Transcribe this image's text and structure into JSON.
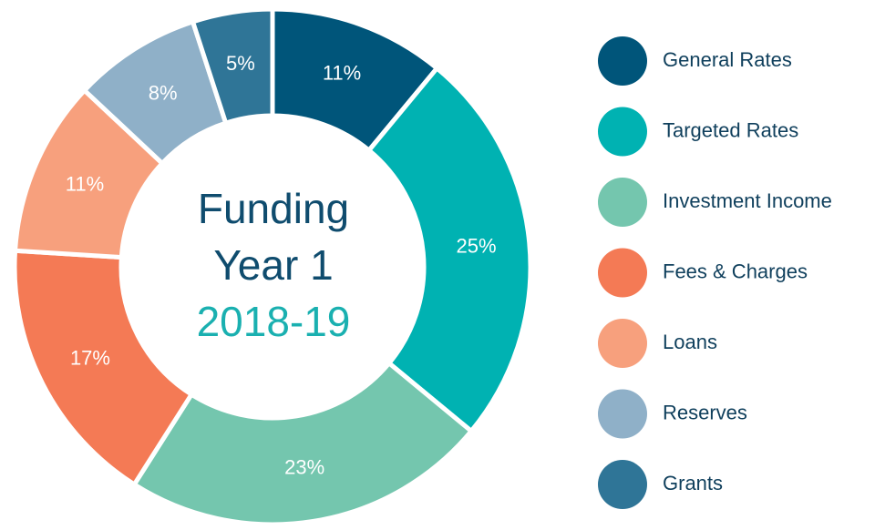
{
  "chart_data": {
    "type": "donut",
    "title_lines": [
      "Funding",
      "Year 1"
    ],
    "subtitle": "2018-19",
    "categories": [
      "General Rates",
      "Targeted Rates",
      "Investment Income",
      "Fees & Charges",
      "Loans",
      "Reserves",
      "Grants"
    ],
    "values": [
      11,
      25,
      23,
      17,
      11,
      8,
      5
    ],
    "value_labels": [
      "11%",
      "25%",
      "23%",
      "17%",
      "11%",
      "8%",
      "5%"
    ],
    "colors": [
      "#00557a",
      "#00b2b2",
      "#74c6ae",
      "#f47a55",
      "#f7a07d",
      "#8fb0c8",
      "#2f7597"
    ],
    "legend": "right"
  }
}
